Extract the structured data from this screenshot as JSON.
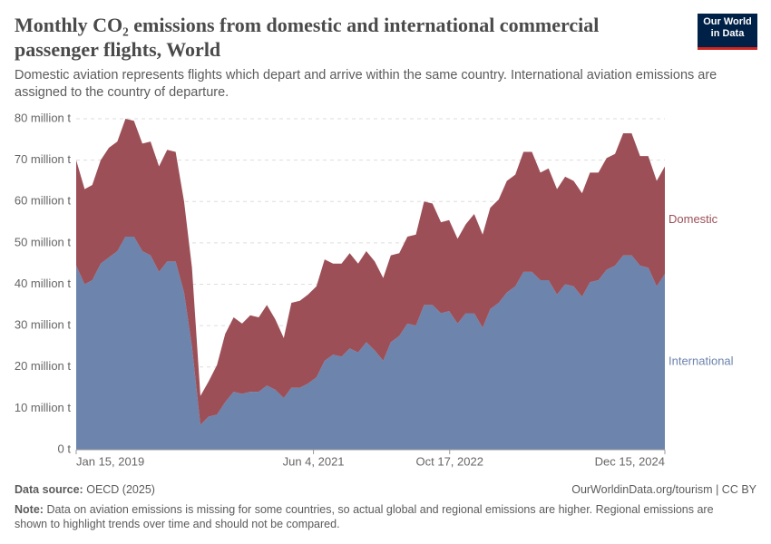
{
  "chart_data": {
    "type": "stacked_area",
    "title": "Monthly CO₂ emissions from domestic and international commercial passenger flights, World",
    "subtitle": "Domestic aviation represents flights which depart and arrive within the same country. International aviation emissions are assigned to the country of departure.",
    "logo": "Our World in Data",
    "source_label": "Data source:",
    "source": "OECD (2025)",
    "url": "OurWorldinData.org/tourism | CC BY",
    "note_label": "Note:",
    "note": "Data on aviation emissions is missing for some countries, so actual global and regional emissions are higher. Regional emissions are shown to highlight trends over time and should not be compared.",
    "x": [
      "2019-01-15",
      "2019-02-15",
      "2019-03-15",
      "2019-04-15",
      "2019-05-15",
      "2019-06-15",
      "2019-07-15",
      "2019-08-15",
      "2019-09-15",
      "2019-10-15",
      "2019-11-15",
      "2019-12-15",
      "2020-01-15",
      "2020-02-15",
      "2020-03-15",
      "2020-04-15",
      "2020-05-15",
      "2020-06-15",
      "2020-07-15",
      "2020-08-15",
      "2020-09-15",
      "2020-10-15",
      "2020-11-15",
      "2020-12-15",
      "2021-01-15",
      "2021-02-15",
      "2021-03-15",
      "2021-04-15",
      "2021-05-15",
      "2021-06-15",
      "2021-07-15",
      "2021-08-15",
      "2021-09-15",
      "2021-10-15",
      "2021-11-15",
      "2021-12-15",
      "2022-01-15",
      "2022-02-15",
      "2022-03-15",
      "2022-04-15",
      "2022-05-15",
      "2022-06-15",
      "2022-07-15",
      "2022-08-15",
      "2022-09-15",
      "2022-10-15",
      "2022-11-15",
      "2022-12-15",
      "2023-01-15",
      "2023-02-15",
      "2023-03-15",
      "2023-04-15",
      "2023-05-15",
      "2023-06-15",
      "2023-07-15",
      "2023-08-15",
      "2023-09-15",
      "2023-10-15",
      "2023-11-15",
      "2023-12-15",
      "2024-01-15",
      "2024-02-15",
      "2024-03-15",
      "2024-04-15",
      "2024-05-15",
      "2024-06-15",
      "2024-07-15",
      "2024-08-15",
      "2024-09-15",
      "2024-10-15",
      "2024-11-15",
      "2024-12-15"
    ],
    "xlim": [
      "2019-01-15",
      "2024-12-15"
    ],
    "xticks": [
      {
        "value": "2019-01-15",
        "label": "Jan 15, 2019"
      },
      {
        "value": "2021-06-04",
        "label": "Jun 4, 2021"
      },
      {
        "value": "2022-10-17",
        "label": "Oct 17, 2022"
      },
      {
        "value": "2024-12-15",
        "label": "Dec 15, 2024"
      }
    ],
    "ylim": [
      0,
      80
    ],
    "yticks": [
      {
        "value": 0,
        "label": "0 t"
      },
      {
        "value": 10,
        "label": "10 million t"
      },
      {
        "value": 20,
        "label": "20 million t"
      },
      {
        "value": 30,
        "label": "30 million t"
      },
      {
        "value": 40,
        "label": "40 million t"
      },
      {
        "value": 50,
        "label": "50 million t"
      },
      {
        "value": 60,
        "label": "60 million t"
      },
      {
        "value": 70,
        "label": "70 million t"
      },
      {
        "value": 80,
        "label": "80 million t"
      }
    ],
    "grid": true,
    "series": [
      {
        "name": "International",
        "color": "#6d84ad",
        "values": [
          44.5,
          40,
          41,
          45,
          46.5,
          48,
          51.5,
          51.5,
          48,
          47,
          43,
          45.5,
          45.5,
          38,
          25,
          6,
          8,
          8.5,
          11.5,
          14,
          13.5,
          14,
          14,
          15.5,
          14.5,
          12.5,
          15,
          15,
          16,
          17.5,
          21.5,
          23,
          22.5,
          24.5,
          23.5,
          26,
          24,
          21.5,
          26,
          27.5,
          30.5,
          30,
          35,
          35,
          33,
          33.5,
          30.5,
          33,
          33,
          29.5,
          34,
          35.5,
          38,
          39.5,
          43,
          43,
          41,
          41,
          37.5,
          40,
          39.5,
          37,
          40.5,
          41,
          43.5,
          44.5,
          47,
          47,
          44.5,
          44,
          39.5,
          42.5
        ]
      },
      {
        "name": "Domestic",
        "color": "#9c4f57",
        "values": [
          25.5,
          23,
          23,
          25,
          26.5,
          26.5,
          28.5,
          28,
          26,
          27.5,
          25.5,
          27,
          26.5,
          22,
          19,
          7,
          8.5,
          12,
          16.5,
          18,
          17,
          18.5,
          18,
          19.5,
          17,
          14.5,
          20.5,
          21,
          21.5,
          22,
          24.5,
          22,
          22.5,
          23,
          21.5,
          22,
          21.5,
          20,
          21,
          20,
          21,
          22,
          25,
          24.5,
          22,
          22,
          20.5,
          21.5,
          24,
          22.5,
          24.5,
          25,
          27,
          27,
          29,
          29,
          26,
          27,
          25.5,
          26,
          25.5,
          25,
          26.5,
          26,
          27,
          27,
          29.5,
          29.5,
          26.5,
          27,
          25.5,
          26
        ]
      }
    ]
  }
}
